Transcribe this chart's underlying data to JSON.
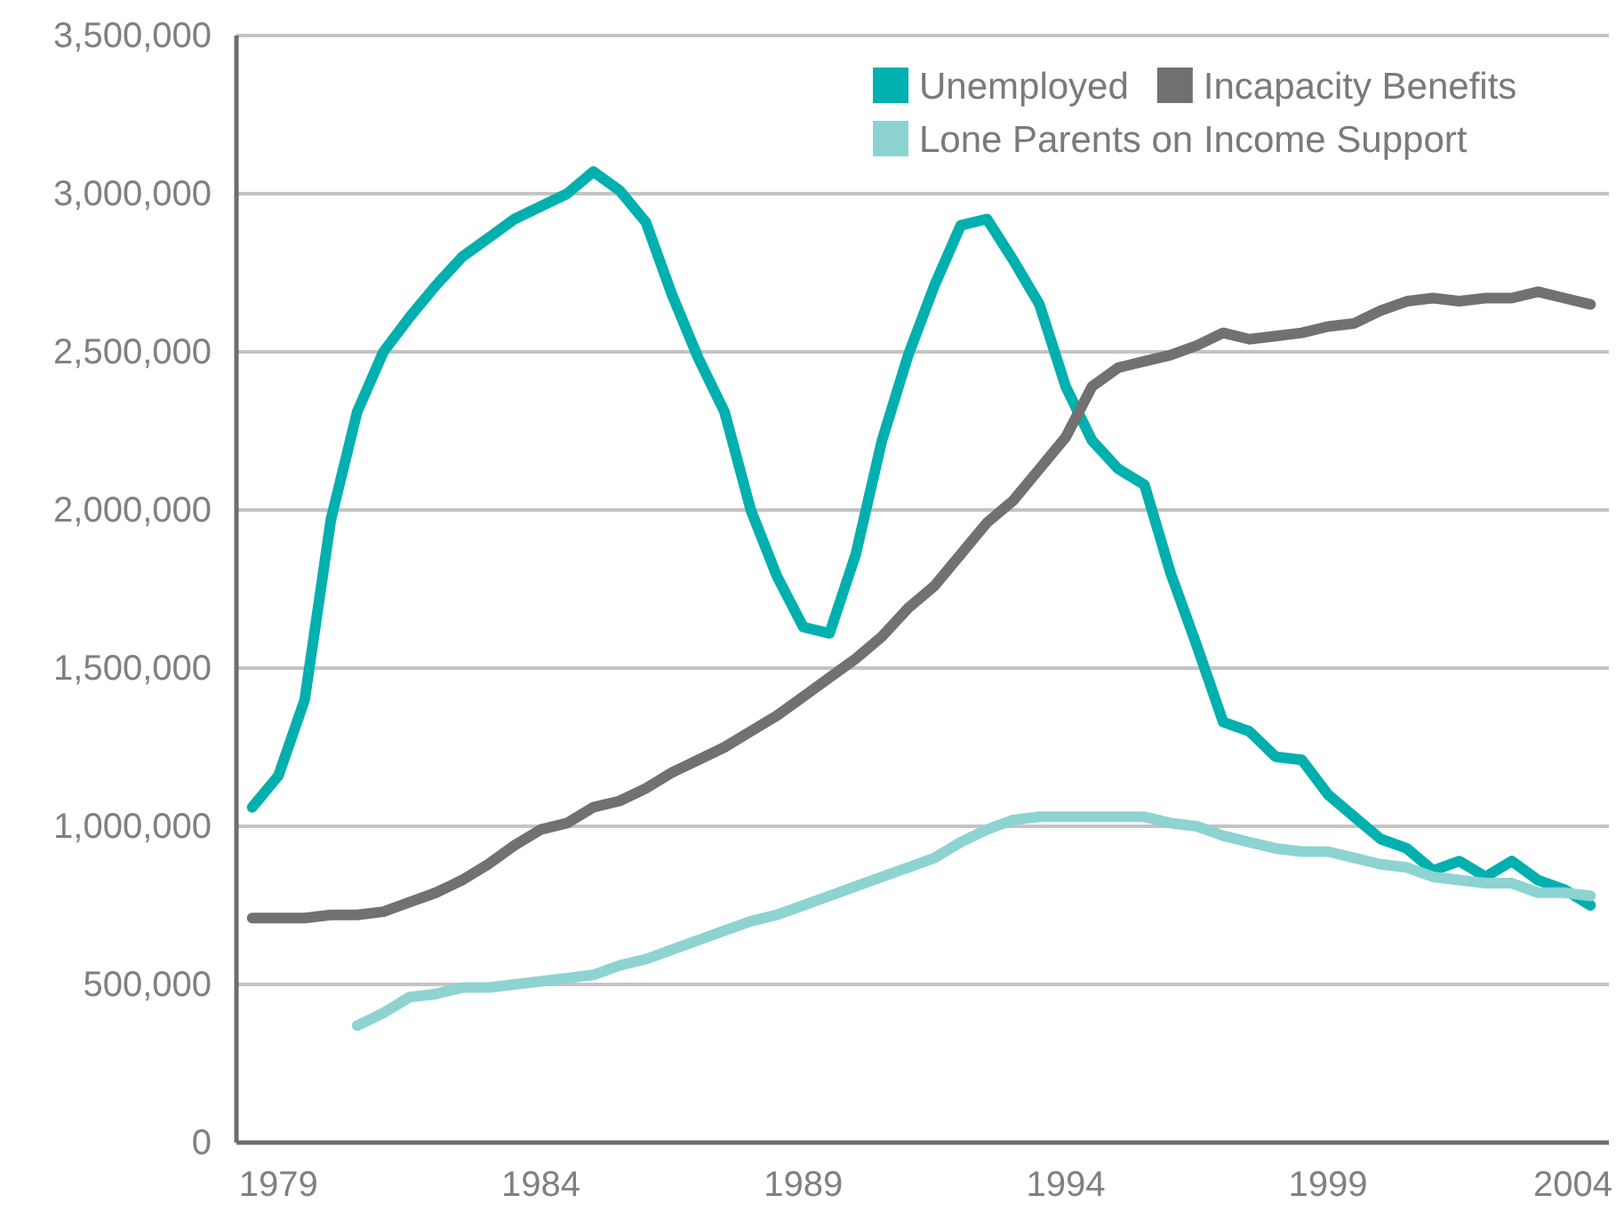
{
  "chart_data": {
    "type": "line",
    "xlim": [
      1978.2,
      2004.35
    ],
    "xticks": [
      1979,
      1984,
      1989,
      1994,
      1999,
      2004
    ],
    "ylim": [
      0,
      3500000
    ],
    "yticks": [
      0,
      {
        "value": 500000,
        "label": "500,000"
      },
      {
        "value": 1000000,
        "label": "1,000,000"
      },
      {
        "value": 1500000,
        "label": "1,500,000"
      },
      {
        "value": 2000000,
        "label": "2,000,000"
      },
      {
        "value": 2500000,
        "label": "2,500,000"
      },
      {
        "value": 3000000,
        "label": "3,000,000"
      },
      {
        "value": 3500000,
        "label": "3,500,000"
      }
    ],
    "grid": "y",
    "legend": "top right",
    "marker": "none",
    "line_style": "solid",
    "series": [
      {
        "name": "Unemployed",
        "color": "#00b0ae",
        "x": [
          1978.5,
          1979,
          1979.5,
          1980,
          1980.5,
          1981,
          1981.5,
          1982,
          1982.5,
          1983,
          1983.5,
          1984,
          1984.5,
          1985,
          1985.5,
          1986,
          1986.5,
          1987,
          1987.5,
          1988,
          1988.5,
          1989,
          1989.5,
          1990,
          1990.5,
          1991,
          1991.5,
          1992,
          1992.5,
          1993,
          1993.5,
          1994,
          1994.5,
          1995,
          1995.5,
          1996,
          1996.5,
          1997,
          1997.5,
          1998,
          1998.5,
          1999,
          1999.5,
          2000,
          2000.5,
          2001,
          2001.5,
          2002,
          2002.5,
          2003,
          2003.5,
          2004
        ],
        "values": [
          1060000,
          1160000,
          1400000,
          1970000,
          2310000,
          2500000,
          2610000,
          2710000,
          2800000,
          2860000,
          2920000,
          2960000,
          3000000,
          3070000,
          3010000,
          2910000,
          2680000,
          2480000,
          2310000,
          2000000,
          1790000,
          1630000,
          1610000,
          1860000,
          2220000,
          2490000,
          2710000,
          2900000,
          2920000,
          2790000,
          2650000,
          2390000,
          2220000,
          2130000,
          2080000,
          1800000,
          1570000,
          1330000,
          1300000,
          1220000,
          1210000,
          1100000,
          1030000,
          960000,
          930000,
          860000,
          890000,
          840000,
          890000,
          830000,
          800000,
          750000
        ]
      },
      {
        "name": "Incapacity Benefits",
        "color": "#717073",
        "x": [
          1978.5,
          1979,
          1979.5,
          1980,
          1980.5,
          1981,
          1981.5,
          1982,
          1982.5,
          1983,
          1983.5,
          1984,
          1984.5,
          1985,
          1985.5,
          1986,
          1986.5,
          1987,
          1987.5,
          1988,
          1988.5,
          1989,
          1989.5,
          1990,
          1990.5,
          1991,
          1991.5,
          1992,
          1992.5,
          1993,
          1993.5,
          1994,
          1994.5,
          1995,
          1995.5,
          1996,
          1996.5,
          1997,
          1997.5,
          1998,
          1998.5,
          1999,
          1999.5,
          2000,
          2000.5,
          2001,
          2001.5,
          2002,
          2002.5,
          2003,
          2003.5,
          2004
        ],
        "values": [
          710000,
          710000,
          710000,
          720000,
          720000,
          730000,
          760000,
          790000,
          830000,
          880000,
          940000,
          990000,
          1010000,
          1060000,
          1080000,
          1120000,
          1170000,
          1210000,
          1250000,
          1300000,
          1350000,
          1410000,
          1470000,
          1530000,
          1600000,
          1690000,
          1760000,
          1860000,
          1960000,
          2030000,
          2130000,
          2230000,
          2390000,
          2450000,
          2470000,
          2490000,
          2520000,
          2560000,
          2540000,
          2550000,
          2560000,
          2580000,
          2590000,
          2630000,
          2660000,
          2670000,
          2660000,
          2670000,
          2670000,
          2690000,
          2670000,
          2650000
        ]
      },
      {
        "name": "Lone Parents on Income Support",
        "color": "#8dd3d1",
        "x": [
          1980.5,
          1981,
          1981.5,
          1982,
          1982.5,
          1983,
          1983.5,
          1984,
          1984.5,
          1985,
          1985.5,
          1986,
          1986.5,
          1987,
          1987.5,
          1988,
          1988.5,
          1989,
          1989.5,
          1990,
          1990.5,
          1991,
          1991.5,
          1992,
          1992.5,
          1993,
          1993.5,
          1994,
          1994.5,
          1995,
          1995.5,
          1996,
          1996.5,
          1997,
          1997.5,
          1998,
          1998.5,
          1999,
          1999.5,
          2000,
          2000.5,
          2001,
          2001.5,
          2002,
          2002.5,
          2003,
          2003.5,
          2004
        ],
        "values": [
          370000,
          410000,
          460000,
          470000,
          490000,
          490000,
          500000,
          510000,
          520000,
          530000,
          560000,
          580000,
          610000,
          640000,
          670000,
          700000,
          720000,
          750000,
          780000,
          810000,
          840000,
          870000,
          900000,
          950000,
          990000,
          1020000,
          1030000,
          1030000,
          1030000,
          1030000,
          1030000,
          1010000,
          1000000,
          970000,
          950000,
          930000,
          920000,
          920000,
          900000,
          880000,
          870000,
          840000,
          830000,
          820000,
          820000,
          790000,
          790000,
          780000
        ]
      }
    ]
  }
}
